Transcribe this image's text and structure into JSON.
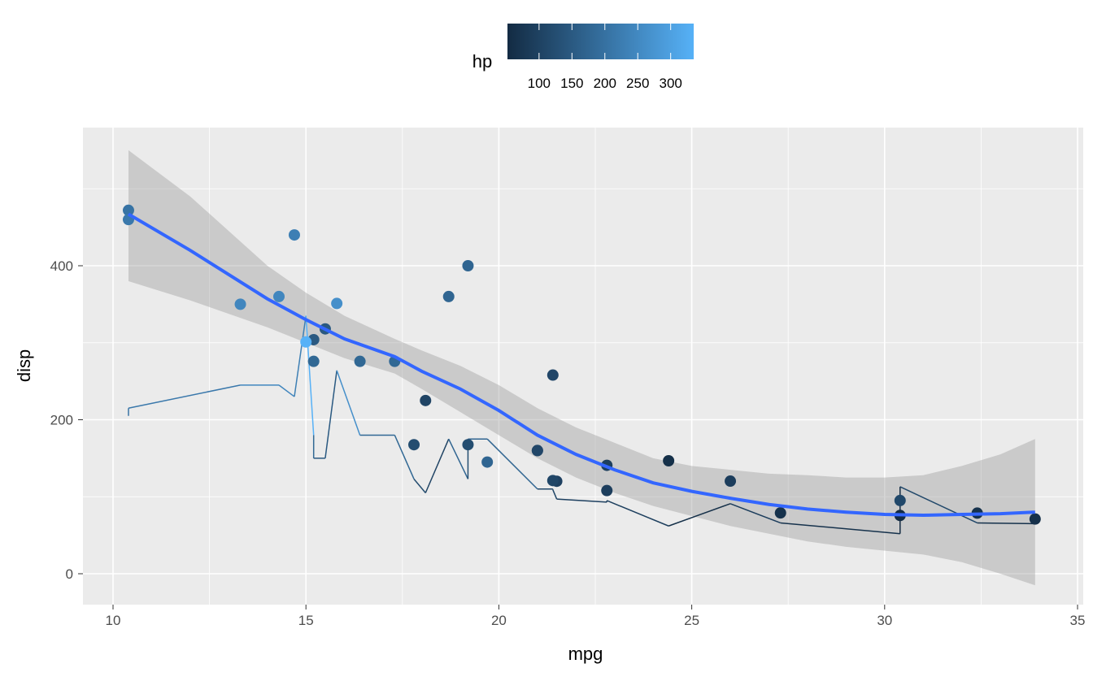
{
  "chart_data": {
    "type": "scatter",
    "xlabel": "mpg",
    "ylabel": "disp",
    "xlim": [
      9.2,
      35.3
    ],
    "ylim": [
      -38,
      580
    ],
    "xticks": [
      10,
      15,
      20,
      25,
      30,
      35
    ],
    "yticks": [
      0,
      200,
      400
    ],
    "legend": {
      "title": "hp",
      "position": "top",
      "ticks": [
        100,
        150,
        200,
        250,
        300
      ],
      "range": [
        52,
        335
      ],
      "low_color": "#132B43",
      "high_color": "#56B1F7"
    },
    "points": [
      {
        "mpg": 21,
        "disp": 160,
        "hp": 110
      },
      {
        "mpg": 21,
        "disp": 160,
        "hp": 110
      },
      {
        "mpg": 22.8,
        "disp": 108,
        "hp": 93
      },
      {
        "mpg": 21.4,
        "disp": 258,
        "hp": 110
      },
      {
        "mpg": 18.7,
        "disp": 360,
        "hp": 175
      },
      {
        "mpg": 18.1,
        "disp": 225,
        "hp": 105
      },
      {
        "mpg": 14.3,
        "disp": 360,
        "hp": 245
      },
      {
        "mpg": 24.4,
        "disp": 146.7,
        "hp": 62
      },
      {
        "mpg": 22.8,
        "disp": 140.8,
        "hp": 95
      },
      {
        "mpg": 19.2,
        "disp": 167.6,
        "hp": 123
      },
      {
        "mpg": 17.8,
        "disp": 167.6,
        "hp": 123
      },
      {
        "mpg": 16.4,
        "disp": 275.8,
        "hp": 180
      },
      {
        "mpg": 17.3,
        "disp": 275.8,
        "hp": 180
      },
      {
        "mpg": 15.2,
        "disp": 275.8,
        "hp": 180
      },
      {
        "mpg": 10.4,
        "disp": 472,
        "hp": 205
      },
      {
        "mpg": 10.4,
        "disp": 460,
        "hp": 215
      },
      {
        "mpg": 14.7,
        "disp": 440,
        "hp": 230
      },
      {
        "mpg": 32.4,
        "disp": 78.7,
        "hp": 66
      },
      {
        "mpg": 30.4,
        "disp": 75.7,
        "hp": 52
      },
      {
        "mpg": 33.9,
        "disp": 71.1,
        "hp": 65
      },
      {
        "mpg": 21.5,
        "disp": 120.1,
        "hp": 97
      },
      {
        "mpg": 15.5,
        "disp": 318,
        "hp": 150
      },
      {
        "mpg": 15.2,
        "disp": 304,
        "hp": 150
      },
      {
        "mpg": 13.3,
        "disp": 350,
        "hp": 245
      },
      {
        "mpg": 19.2,
        "disp": 400,
        "hp": 175
      },
      {
        "mpg": 27.3,
        "disp": 79,
        "hp": 66
      },
      {
        "mpg": 26,
        "disp": 120.3,
        "hp": 91
      },
      {
        "mpg": 30.4,
        "disp": 95.1,
        "hp": 113
      },
      {
        "mpg": 15.8,
        "disp": 351,
        "hp": 264
      },
      {
        "mpg": 19.7,
        "disp": 145,
        "hp": 175
      },
      {
        "mpg": 15,
        "disp": 301,
        "hp": 335
      },
      {
        "mpg": 21.4,
        "disp": 121,
        "hp": 109
      }
    ],
    "smooth": {
      "color": "#3366FF",
      "x": [
        10.4,
        12,
        14,
        15,
        16,
        17.3,
        18,
        19,
        20,
        21,
        22,
        23,
        24,
        25,
        26,
        27,
        28,
        29,
        30,
        31,
        32,
        33,
        33.9
      ],
      "y": [
        467,
        420,
        357,
        330,
        305,
        282,
        263,
        240,
        212,
        180,
        155,
        135,
        118,
        107,
        98,
        90,
        84,
        80,
        77,
        76,
        77,
        78,
        80
      ],
      "lower": [
        380,
        355,
        320,
        300,
        280,
        260,
        240,
        210,
        180,
        150,
        125,
        105,
        88,
        75,
        62,
        52,
        42,
        35,
        30,
        25,
        15,
        0,
        -15
      ],
      "upper": [
        550,
        490,
        400,
        365,
        335,
        305,
        290,
        270,
        245,
        215,
        190,
        170,
        150,
        140,
        135,
        130,
        128,
        125,
        125,
        128,
        140,
        155,
        175
      ]
    }
  }
}
